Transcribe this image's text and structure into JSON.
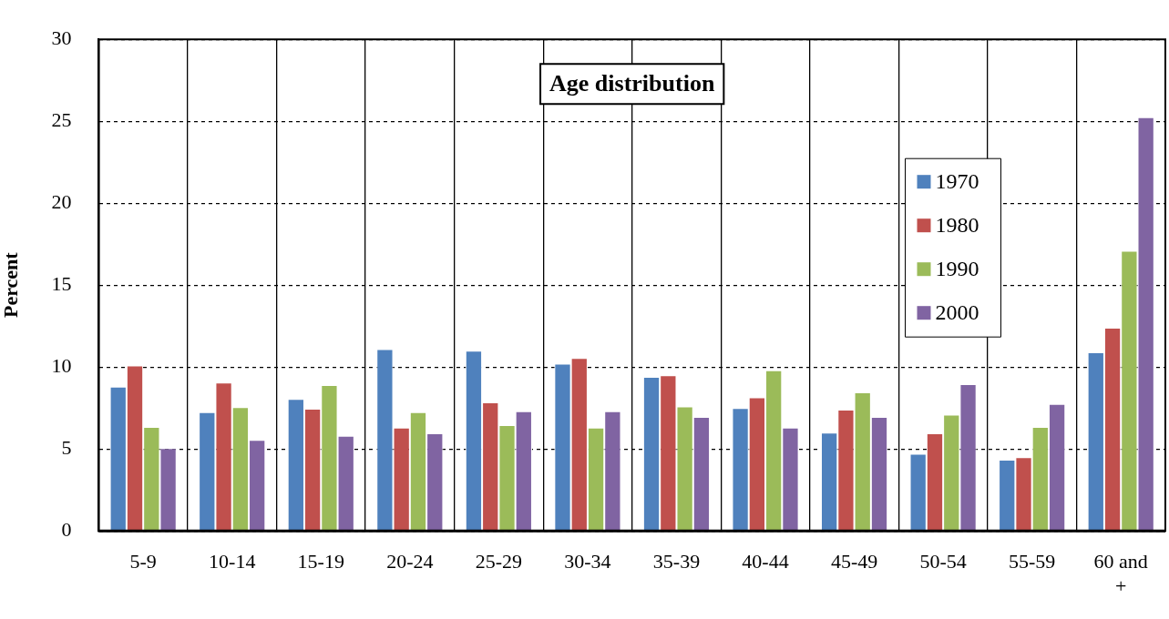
{
  "chart_data": {
    "type": "bar",
    "title": "Age distribution",
    "ylabel": "Percent",
    "categories": [
      "5-9",
      "10-14",
      "15-19",
      "20-24",
      "25-29",
      "30-34",
      "35-39",
      "40-44",
      "45-49",
      "50-54",
      "55-59",
      "60 and +"
    ],
    "series": [
      {
        "name": "1970",
        "color": "#4f81bd",
        "values": [
          8.8,
          7.25,
          8.05,
          11.1,
          11.0,
          10.2,
          9.4,
          7.5,
          6.0,
          4.7,
          4.35,
          10.9
        ]
      },
      {
        "name": "1980",
        "color": "#c0504d",
        "values": [
          10.1,
          9.05,
          7.45,
          6.3,
          7.85,
          10.55,
          9.5,
          8.15,
          7.4,
          5.95,
          4.5,
          12.4
        ]
      },
      {
        "name": "1990",
        "color": "#9bbb59",
        "values": [
          6.35,
          7.55,
          8.9,
          7.25,
          6.45,
          6.3,
          7.6,
          9.8,
          8.45,
          7.1,
          6.35,
          17.1
        ]
      },
      {
        "name": "2000",
        "color": "#8064a2",
        "values": [
          5.05,
          5.55,
          5.8,
          5.95,
          7.3,
          7.3,
          6.95,
          6.3,
          6.95,
          8.95,
          7.75,
          25.25
        ]
      }
    ],
    "ylim": [
      0,
      30
    ],
    "yticks": [
      0,
      5,
      10,
      15,
      20,
      25,
      30
    ],
    "grid": true,
    "legend": "top right"
  }
}
